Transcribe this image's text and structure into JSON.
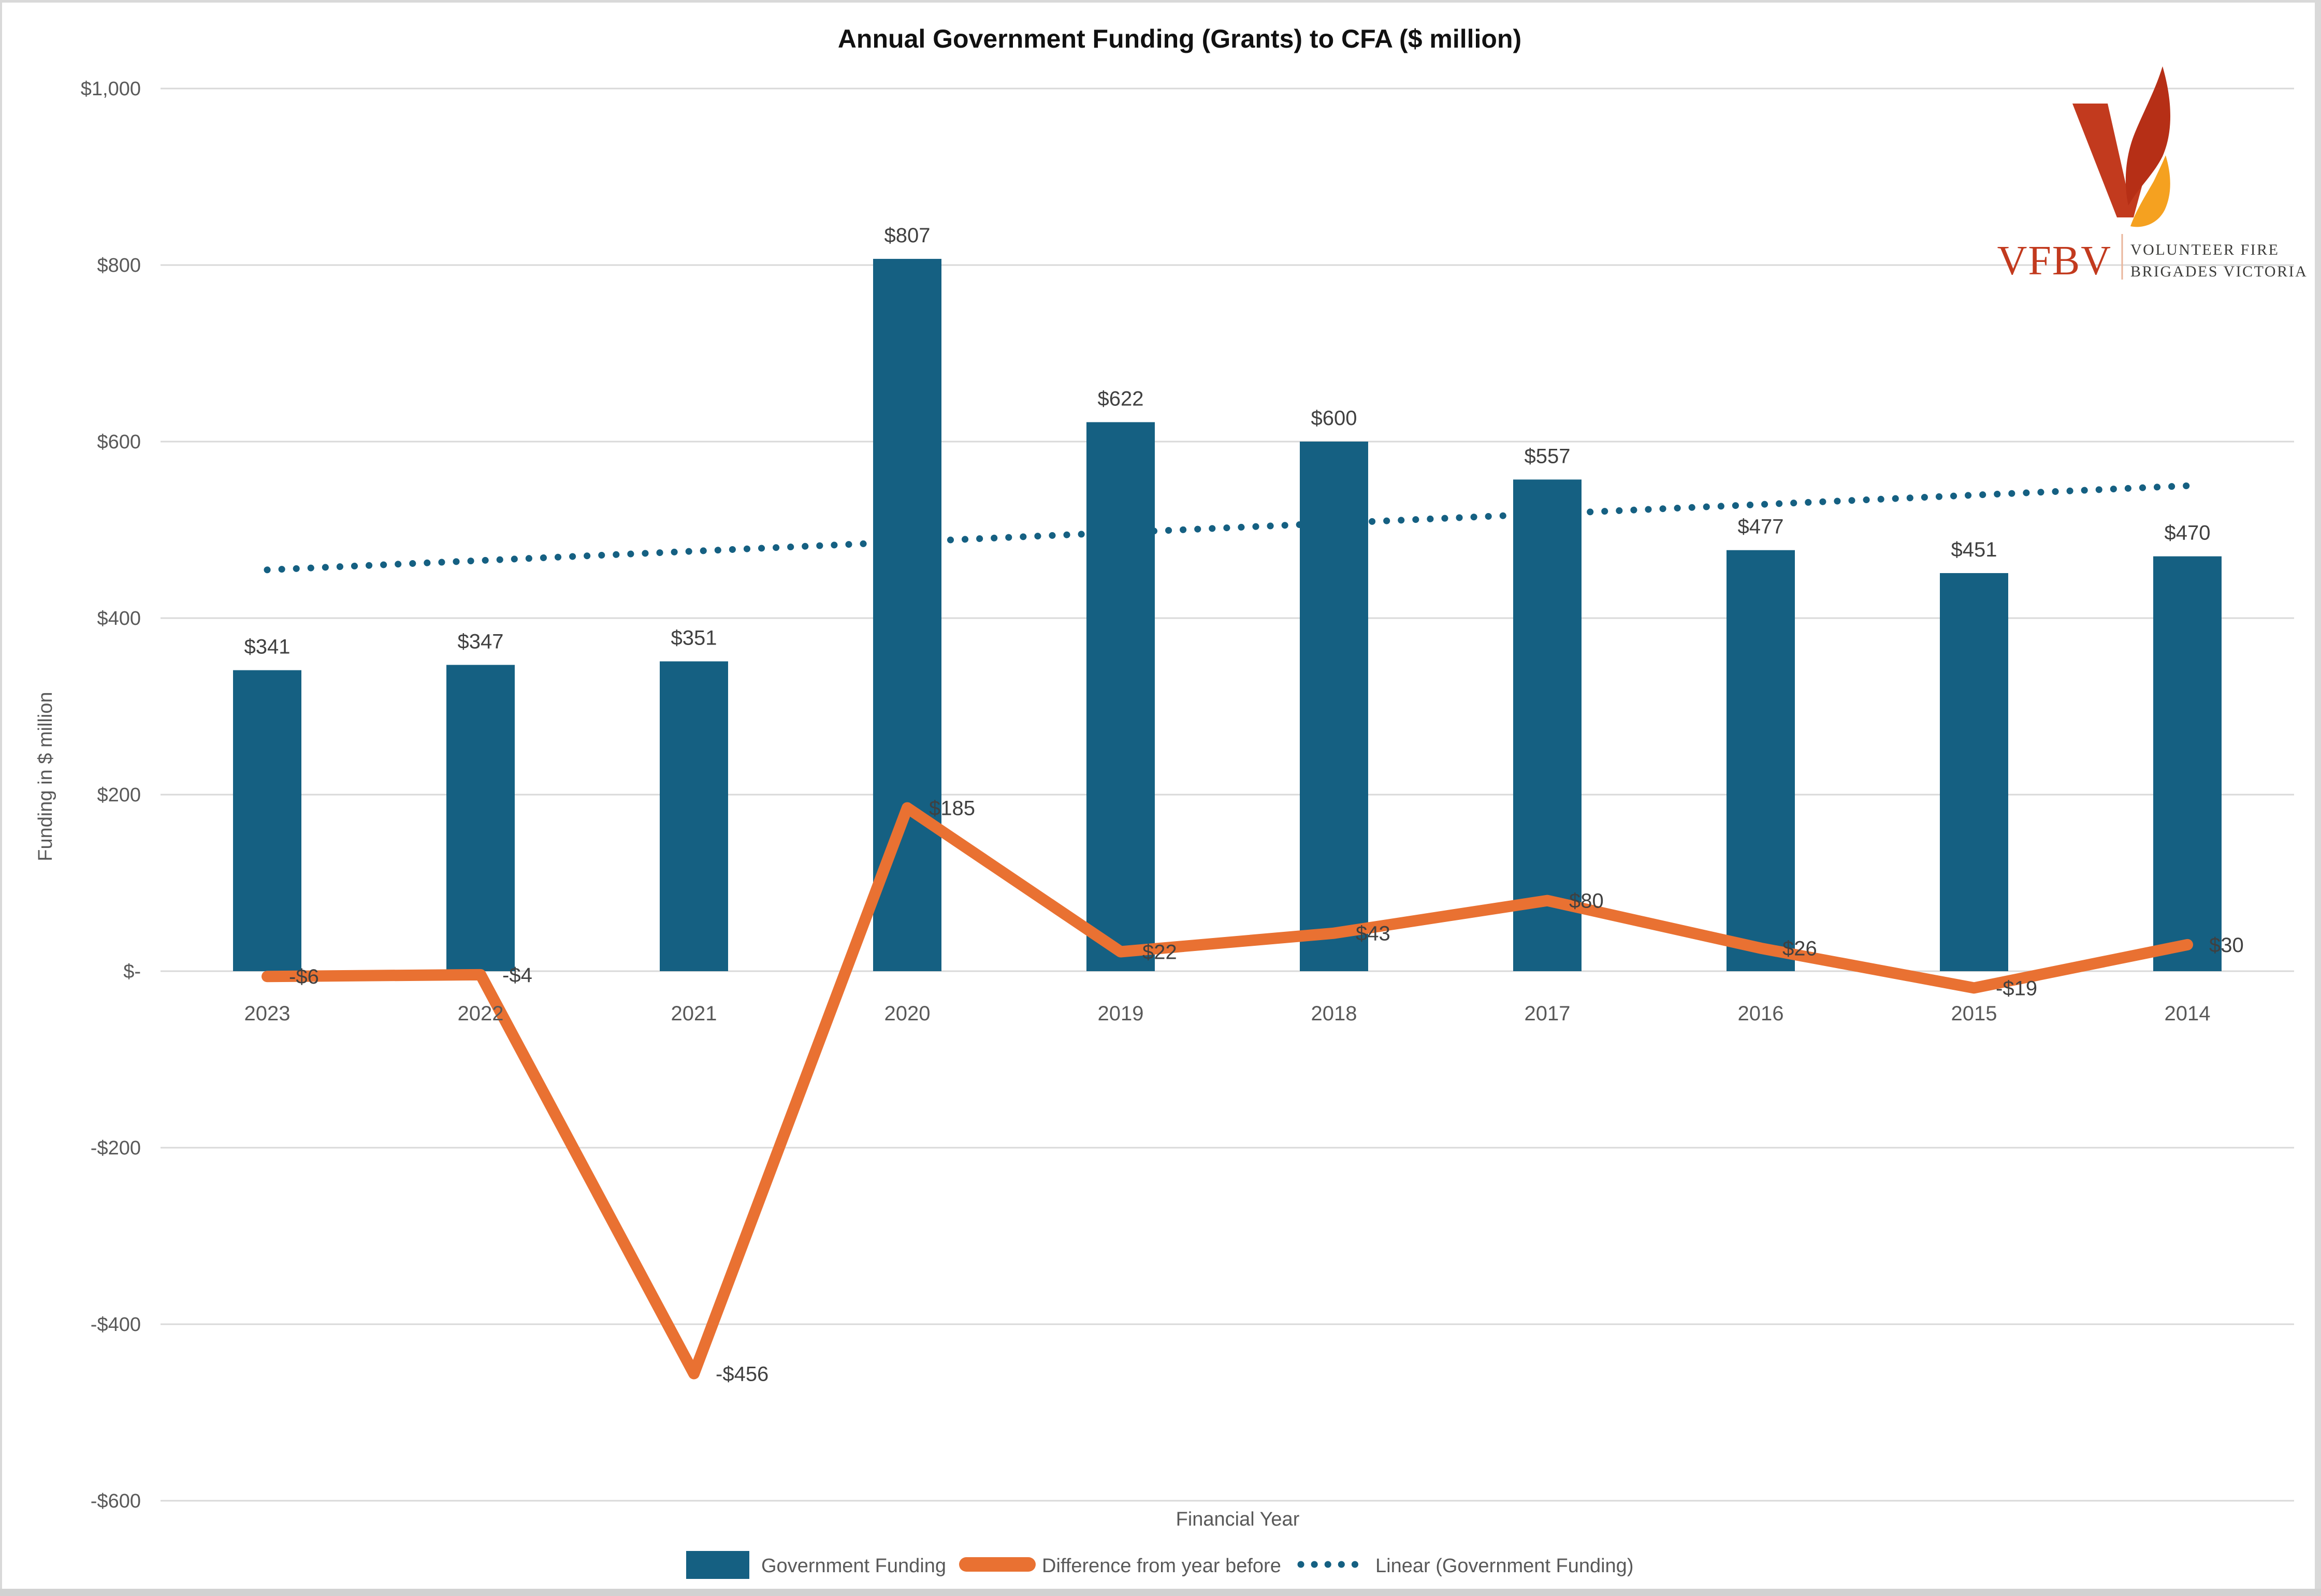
{
  "chart_data": {
    "type": "bar",
    "title": "Annual Government Funding (Grants) to CFA ($ million)",
    "x_axis_title": "Financial Year",
    "y_axis_title": "Funding in $ million",
    "categories": [
      "2023",
      "2022",
      "2021",
      "2020",
      "2019",
      "2018",
      "2017",
      "2016",
      "2015",
      "2014"
    ],
    "ylim": [
      -600,
      1000
    ],
    "grid": true,
    "legend_position": "bottom",
    "y_ticks": [
      {
        "value": 1000,
        "label": "$1,000"
      },
      {
        "value": 800,
        "label": "$800"
      },
      {
        "value": 600,
        "label": "$600"
      },
      {
        "value": 400,
        "label": "$400"
      },
      {
        "value": 200,
        "label": "$200"
      },
      {
        "value": 0,
        "label": "$-"
      },
      {
        "value": -200,
        "label": "-$200"
      },
      {
        "value": -400,
        "label": "-$400"
      },
      {
        "value": -600,
        "label": "-$600"
      }
    ],
    "series": [
      {
        "name": "Government Funding",
        "type": "bar",
        "color": "#156082",
        "values": [
          341,
          347,
          351,
          807,
          622,
          600,
          557,
          477,
          451,
          470
        ],
        "data_labels": [
          "$341",
          "$347",
          "$351",
          "$807",
          "$622",
          "$600",
          "$557",
          "$477",
          "$451",
          "$470"
        ]
      },
      {
        "name": "Difference from year before",
        "type": "line",
        "color": "#E97132",
        "values": [
          -6,
          -4,
          -456,
          185,
          22,
          43,
          80,
          26,
          -19,
          30
        ],
        "data_labels": [
          "-$6",
          "-$4",
          "-$456",
          "$185",
          "$22",
          "$43",
          "$80",
          "$26",
          "-$19",
          "$30"
        ]
      },
      {
        "name": "Linear (Government Funding)",
        "type": "linear_trendline",
        "of_series": "Government Funding",
        "style": "dotted",
        "color": "#156082"
      }
    ]
  },
  "legend": {
    "bar_label": "Government Funding",
    "line_label": "Difference from year before",
    "trend_label": "Linear (Government Funding)"
  },
  "logo": {
    "abbr": "VFBV",
    "name_line1": "VOLUNTEER FIRE",
    "name_line2": "BRIGADES VICTORIA"
  },
  "colors": {
    "bar": "#156082",
    "line": "#E97132",
    "trend": "#156082",
    "grid": "#D9D9D9",
    "frame": "#D9D9D9",
    "frame_bottom": "#D2D2D2",
    "logo_red": "#C23A1E",
    "flame_dark": "#B62F16",
    "flame_orange": "#F5A120",
    "logo_divider": "#E9B59B"
  }
}
